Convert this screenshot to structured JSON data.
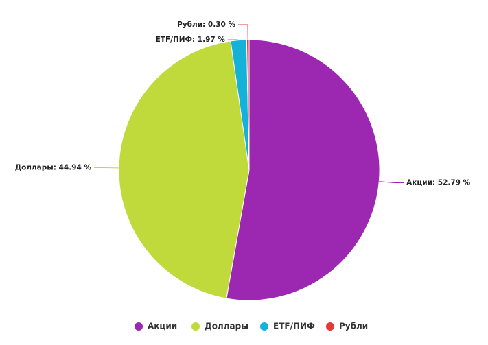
{
  "chart_data": {
    "type": "pie",
    "categories": [
      "Акции",
      "Доллары",
      "ETF/ПИФ",
      "Рубли"
    ],
    "values": [
      52.79,
      44.94,
      1.97,
      0.3
    ],
    "value_labels": [
      "Акции: 52.79 %",
      "Доллары: 44.94 %",
      "ETF/ПИФ: 1.97 %",
      "Рубли: 0.30 %"
    ],
    "colors": [
      "#9c27b0",
      "#c0da3c",
      "#14b1d8",
      "#e53935"
    ],
    "legend": "bottom"
  }
}
